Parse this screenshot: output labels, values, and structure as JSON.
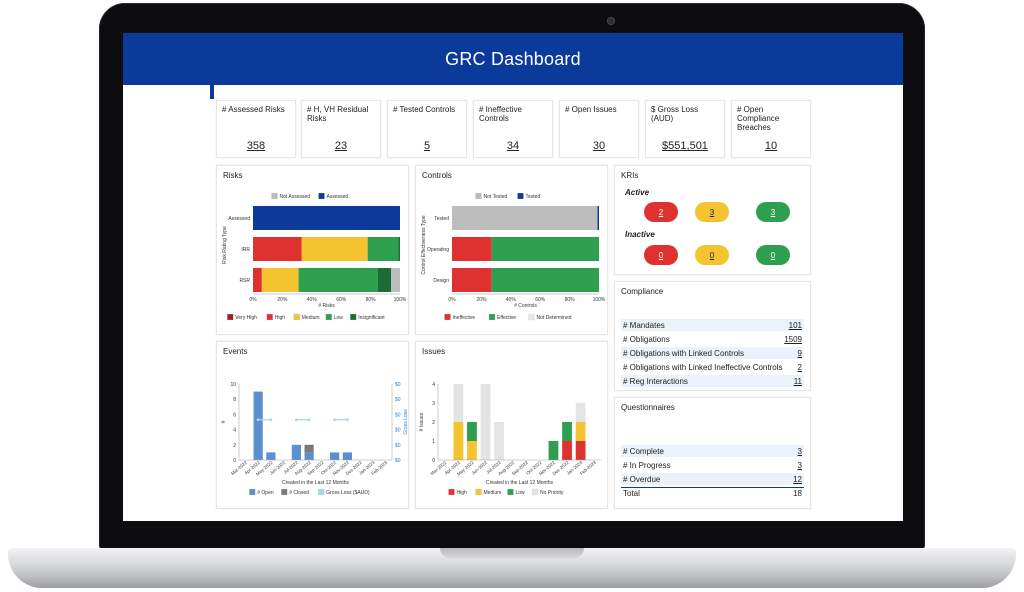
{
  "dashboard": {
    "title": "GRC Dashboard"
  },
  "kpis": [
    {
      "label": "# Assessed Risks",
      "value": "358"
    },
    {
      "label": "# H, VH Residual Risks",
      "value": "23"
    },
    {
      "label": "# Tested Controls",
      "value": "5"
    },
    {
      "label": "# Ineffective Controls",
      "value": "34"
    },
    {
      "label": "# Open Issues",
      "value": "30"
    },
    {
      "label": "$ Gross Loss (AUD)",
      "value": "$551,501"
    },
    {
      "label": "# Open Compliance Breaches",
      "value": "10"
    }
  ],
  "risks_panel": {
    "title": "Risks",
    "chart_data": {
      "type": "bar",
      "orientation": "horizontal",
      "stacked": "100%",
      "categories": [
        "Assessed",
        "IRR",
        "RSR"
      ],
      "ylabel": "Risk Rating Type",
      "xlabel": "# Risks",
      "xlim": [
        0,
        100
      ],
      "x_ticks": [
        "0%",
        "20%",
        "40%",
        "60%",
        "80%",
        "100%"
      ],
      "top_legend": [
        {
          "name": "Not Assessed",
          "color": "#bdbdbd"
        },
        {
          "name": "Assessed",
          "color": "#0a3a9a"
        }
      ],
      "bottom_legend": [
        {
          "name": "Very High",
          "color": "#a61c1c"
        },
        {
          "name": "High",
          "color": "#e03131"
        },
        {
          "name": "Medium",
          "color": "#f4c430"
        },
        {
          "name": "Low",
          "color": "#2e9e4f"
        },
        {
          "name": "Insignificant",
          "color": "#1f6b35"
        }
      ],
      "rows": [
        {
          "category": "Assessed",
          "segments": [
            {
              "color": "#0a3a9a",
              "value": 100
            }
          ]
        },
        {
          "category": "IRR",
          "segments": [
            {
              "color": "#e03131",
              "value": 33
            },
            {
              "color": "#f4c430",
              "value": 45
            },
            {
              "color": "#2e9e4f",
              "value": 21
            },
            {
              "color": "#1f6b35",
              "value": 1
            }
          ]
        },
        {
          "category": "RSR",
          "segments": [
            {
              "color": "#e03131",
              "value": 6
            },
            {
              "color": "#f4c430",
              "value": 25
            },
            {
              "color": "#2e9e4f",
              "value": 54
            },
            {
              "color": "#1f6b35",
              "value": 9
            },
            {
              "color": "#bdbdbd",
              "value": 6
            }
          ]
        }
      ]
    }
  },
  "controls_panel": {
    "title": "Controls",
    "chart_data": {
      "type": "bar",
      "orientation": "horizontal",
      "stacked": "100%",
      "categories": [
        "Tested",
        "Operating",
        "Design"
      ],
      "ylabel": "Control Effectiveness Type",
      "xlabel": "# Controls",
      "xlim": [
        0,
        100
      ],
      "x_ticks": [
        "0%",
        "20%",
        "40%",
        "60%",
        "80%",
        "100%"
      ],
      "top_legend": [
        {
          "name": "Not Tested",
          "color": "#bdbdbd"
        },
        {
          "name": "Tested",
          "color": "#0a3a9a"
        }
      ],
      "bottom_legend": [
        {
          "name": "Ineffective",
          "color": "#e03131"
        },
        {
          "name": "Effective",
          "color": "#2e9e4f"
        },
        {
          "name": "Not Determined",
          "color": "#e6e6e6"
        }
      ],
      "rows": [
        {
          "category": "Tested",
          "segments": [
            {
              "color": "#bdbdbd",
              "value": 99
            },
            {
              "color": "#0a3a9a",
              "value": 1
            }
          ]
        },
        {
          "category": "Operating",
          "segments": [
            {
              "color": "#e03131",
              "value": 27
            },
            {
              "color": "#2e9e4f",
              "value": 73
            }
          ]
        },
        {
          "category": "Design",
          "segments": [
            {
              "color": "#e03131",
              "value": 27
            },
            {
              "color": "#2e9e4f",
              "value": 73
            }
          ]
        }
      ]
    }
  },
  "events_panel": {
    "title": "Events",
    "chart_data": {
      "type": "bar",
      "stacked": true,
      "categories": [
        "Mar-2022",
        "Apr-2022",
        "May-2022",
        "Jun-2022",
        "Jul-2022",
        "Aug-2022",
        "Sep-2022",
        "Oct-2022",
        "Nov-2022",
        "Dec-2022",
        "Jan-2023",
        "Feb-2023"
      ],
      "series": [
        {
          "name": "# Open",
          "color": "#5b8fd0",
          "values": [
            0,
            9,
            1,
            0,
            2,
            1,
            0,
            1,
            1,
            0,
            0,
            0
          ]
        },
        {
          "name": "# Closed",
          "color": "#7a7a7a",
          "values": [
            0,
            0,
            0,
            0,
            0,
            1,
            0,
            0,
            0,
            0,
            0,
            0
          ]
        }
      ],
      "line": {
        "name": "Gross Loss ($AUD)",
        "color": "#a8d8e0",
        "marker_months": [
          "Apr-2022",
          "May-2022",
          "Jul-2022",
          "Aug-2022",
          "Oct-2022",
          "Nov-2022"
        ]
      },
      "xlabel": "Created in the Last 12 Months",
      "ylabel": "#",
      "ylabel_right": "Gross Loss",
      "ylim": [
        0,
        10
      ],
      "y_ticks": [
        "0",
        "2",
        "4",
        "6",
        "8",
        "10"
      ],
      "y_right_ticks": [
        "$0",
        "$0",
        "$0",
        "$0",
        "$0",
        "$0"
      ]
    }
  },
  "issues_panel": {
    "title": "Issues",
    "chart_data": {
      "type": "bar",
      "stacked": true,
      "categories": [
        "Mar-2022",
        "Apr-2022",
        "May-2022",
        "Jun-2022",
        "Jul-2022",
        "Aug-2022",
        "Sep-2022",
        "Oct-2022",
        "Nov-2022",
        "Dec-2022",
        "Jan-2023",
        "Feb-2023"
      ],
      "series": [
        {
          "name": "High",
          "color": "#e03131",
          "values": [
            0,
            0,
            0,
            0,
            0,
            0,
            0,
            0,
            0,
            1,
            1,
            0
          ]
        },
        {
          "name": "Medium",
          "color": "#f4c430",
          "values": [
            0,
            2,
            1,
            0,
            0,
            0,
            0,
            0,
            0,
            0,
            1,
            0
          ]
        },
        {
          "name": "Low",
          "color": "#2e9e4f",
          "values": [
            0,
            0,
            1,
            0,
            0,
            0,
            0,
            0,
            1,
            1,
            0,
            0
          ]
        },
        {
          "name": "No Priority",
          "color": "#e4e4e4",
          "values": [
            0,
            2,
            0,
            4,
            2,
            0,
            0,
            0,
            0,
            0,
            1,
            0
          ]
        }
      ],
      "xlabel": "Created in the Last 12 Months",
      "ylabel": "# Issues",
      "ylim": [
        0,
        4
      ],
      "y_ticks": [
        "0",
        "1",
        "2",
        "3",
        "4"
      ]
    }
  },
  "kris_panel": {
    "title": "KRIs",
    "active_label": "Active",
    "inactive_label": "Inactive",
    "active": [
      {
        "value": "2",
        "color": "#e03131"
      },
      {
        "value": "3",
        "color": "#f4c430"
      },
      {
        "value": "3",
        "color": "#2e9e4f"
      }
    ],
    "inactive": [
      {
        "value": "0",
        "color": "#e03131"
      },
      {
        "value": "0",
        "color": "#f4c430"
      },
      {
        "value": "0",
        "color": "#2e9e4f"
      }
    ]
  },
  "compliance_panel": {
    "title": "Compliance",
    "rows": [
      {
        "label": "# Mandates",
        "value": "101"
      },
      {
        "label": "# Obligations",
        "value": "1509"
      },
      {
        "label": "# Obligations with Linked Controls",
        "value": "9"
      },
      {
        "label": "# Obligations with Linked Ineffective Controls",
        "value": "2"
      },
      {
        "label": "# Reg Interactions",
        "value": "11"
      }
    ]
  },
  "questionnaires_panel": {
    "title": "Questionnaires",
    "rows": [
      {
        "label": "# Complete",
        "value": "3"
      },
      {
        "label": "# In Progress",
        "value": "3"
      },
      {
        "label": "# Overdue",
        "value": "12"
      }
    ],
    "total": {
      "label": "Total",
      "value": "18"
    }
  }
}
